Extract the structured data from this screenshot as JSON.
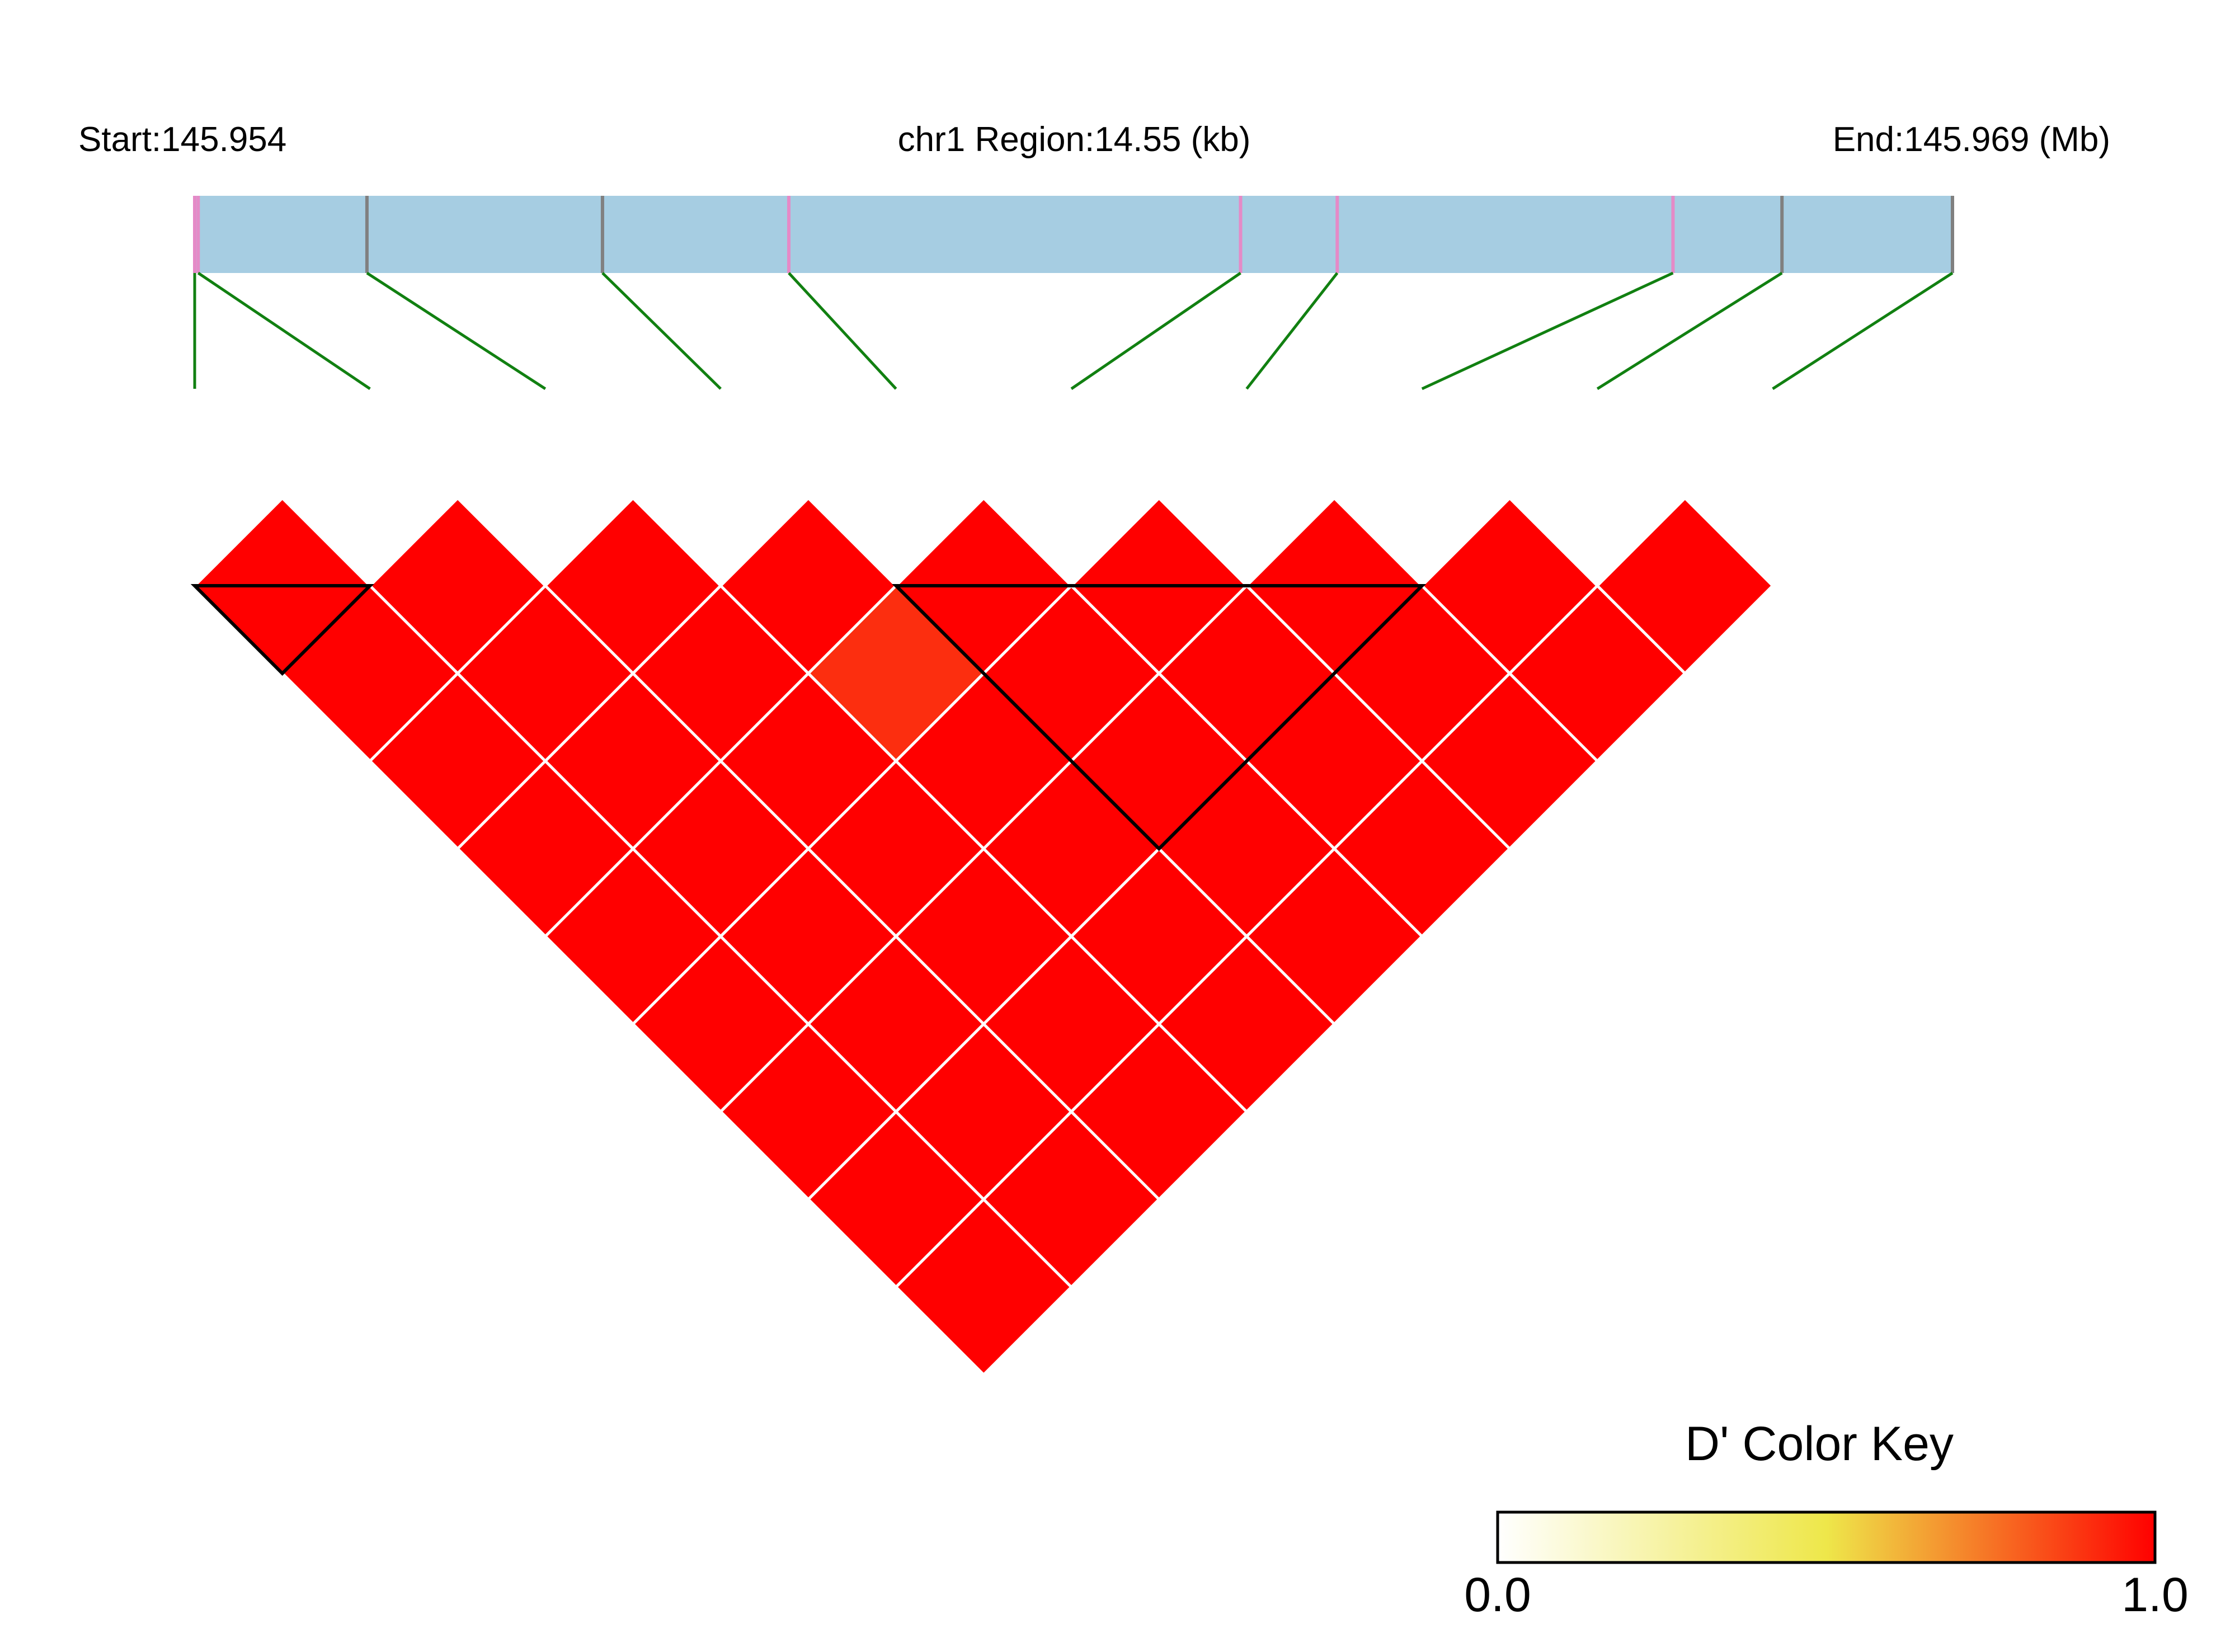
{
  "header": {
    "start_label": "Start:145.954",
    "region_label": "chr1 Region:14.55 (kb)",
    "end_label": "End:145.969 (Mb)"
  },
  "colors": {
    "region_bar": "#a6cde2",
    "snp_tick_pink": "#e58ac7",
    "snp_tick_gray": "#808080",
    "connector": "#118011",
    "cell_border": "#ffffff",
    "block_outline": "#000000",
    "scale_low": "#ffffff",
    "scale_mid": "#eee74a",
    "scale_high": "#ff0000"
  },
  "chart_data": {
    "type": "heatmap",
    "title": "",
    "metric": "D'",
    "region": {
      "chromosome": "chr1",
      "start_mb": 145.954,
      "end_mb": 145.969,
      "length_kb": 14.55
    },
    "snp_count": 10,
    "snp_relative_positions": [
      0.002,
      0.098,
      0.232,
      0.338,
      0.595,
      0.65,
      0.841,
      0.903,
      1.0,
      0.0
    ],
    "snp_tick_colors": [
      "pink",
      "gray",
      "gray",
      "pink",
      "pink",
      "pink",
      "pink",
      "gray",
      "gray",
      "pink"
    ],
    "d_prime_matrix": [
      [
        null,
        1.0,
        1.0,
        1.0,
        1.0,
        1.0,
        1.0,
        1.0,
        1.0,
        1.0
      ],
      [
        null,
        null,
        1.0,
        1.0,
        1.0,
        1.0,
        1.0,
        1.0,
        1.0,
        1.0
      ],
      [
        null,
        null,
        null,
        1.0,
        1.0,
        1.0,
        1.0,
        1.0,
        1.0,
        1.0
      ],
      [
        null,
        null,
        null,
        null,
        1.0,
        0.9,
        1.0,
        1.0,
        1.0,
        1.0
      ],
      [
        null,
        null,
        null,
        null,
        null,
        1.0,
        1.0,
        1.0,
        1.0,
        1.0
      ],
      [
        null,
        null,
        null,
        null,
        null,
        null,
        1.0,
        1.0,
        1.0,
        1.0
      ],
      [
        null,
        null,
        null,
        null,
        null,
        null,
        null,
        1.0,
        1.0,
        1.0
      ],
      [
        null,
        null,
        null,
        null,
        null,
        null,
        null,
        null,
        1.0,
        1.0
      ],
      [
        null,
        null,
        null,
        null,
        null,
        null,
        null,
        null,
        null,
        1.0
      ],
      [
        null,
        null,
        null,
        null,
        null,
        null,
        null,
        null,
        null,
        null
      ]
    ],
    "ld_blocks": [
      {
        "first_snp": 1,
        "last_snp": 2
      },
      {
        "first_snp": 5,
        "last_snp": 8
      }
    ],
    "color_key": {
      "title": "D' Color Key",
      "min_label": "0.0",
      "max_label": "1.0",
      "range": [
        0,
        1
      ]
    }
  }
}
